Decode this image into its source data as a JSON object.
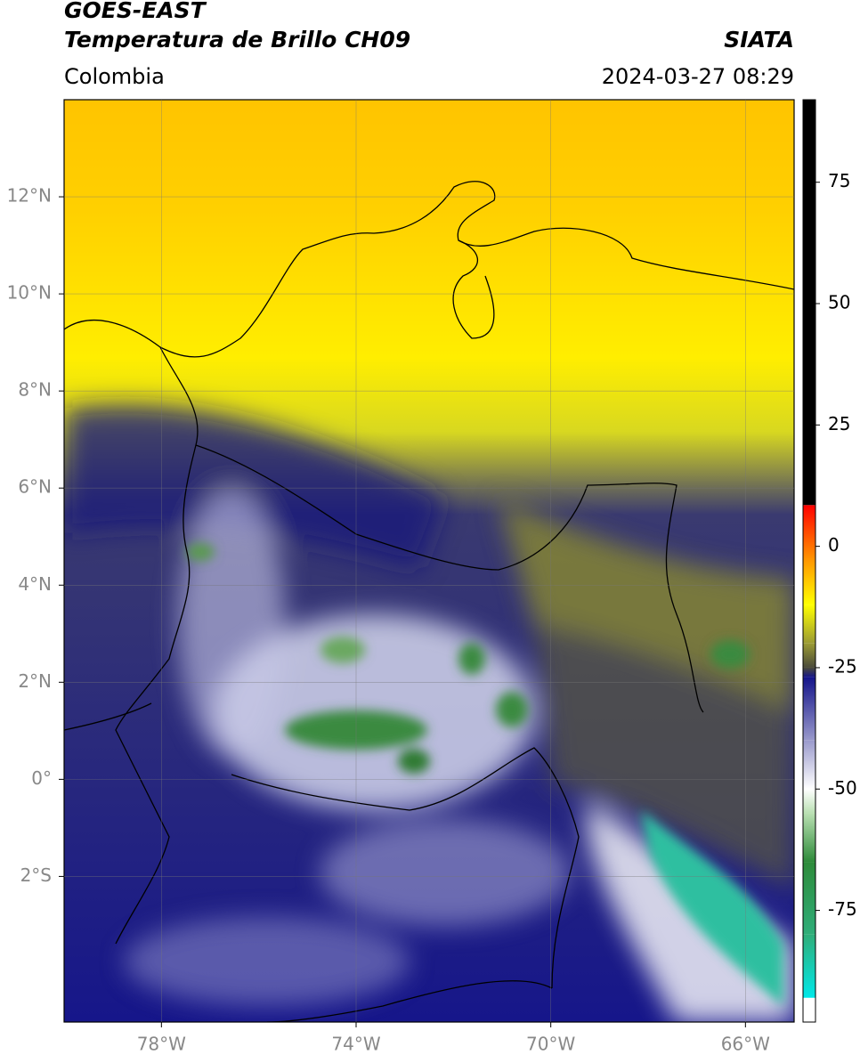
{
  "chart_data": {
    "type": "map",
    "title": "GOES-EAST",
    "subtitle": "Temperatura de Brillo CH09",
    "source": "SIATA",
    "region": "Colombia",
    "datetime": "2024-03-27 08:29",
    "xlim": [
      -80,
      -65
    ],
    "ylim": [
      -5,
      14
    ],
    "xticks": [
      {
        "value": -78,
        "label": "78°W"
      },
      {
        "value": -74,
        "label": "74°W"
      },
      {
        "value": -70,
        "label": "70°W"
      },
      {
        "value": -66,
        "label": "66°W"
      }
    ],
    "yticks": [
      {
        "value": 12,
        "label": "12°N"
      },
      {
        "value": 10,
        "label": "10°N"
      },
      {
        "value": 8,
        "label": "8°N"
      },
      {
        "value": 6,
        "label": "6°N"
      },
      {
        "value": 4,
        "label": "4°N"
      },
      {
        "value": 2,
        "label": "2°N"
      },
      {
        "value": 0,
        "label": "0°"
      },
      {
        "value": -2,
        "label": "2°S"
      }
    ],
    "grid": true,
    "clim": [
      -98,
      92
    ],
    "cticks": [
      75,
      50,
      25,
      0,
      -25,
      -50,
      -75
    ],
    "colormap": [
      {
        "value": -98,
        "color": "#ffffff"
      },
      {
        "value": -93,
        "color": "#ffffff"
      },
      {
        "value": -93,
        "color": "#00e8e8"
      },
      {
        "value": -80,
        "color": "#2fae7a"
      },
      {
        "value": -65,
        "color": "#2e8b3a"
      },
      {
        "value": -55,
        "color": "#b9e0b2"
      },
      {
        "value": -50,
        "color": "#ffffff"
      },
      {
        "value": -40,
        "color": "#9a9acc"
      },
      {
        "value": -27,
        "color": "#14148a"
      },
      {
        "value": -25,
        "color": "#4a4a3a"
      },
      {
        "value": -20,
        "color": "#9a9a33"
      },
      {
        "value": -12,
        "color": "#ffff00"
      },
      {
        "value": -3,
        "color": "#ff9900"
      },
      {
        "value": 8.5,
        "color": "#ff0000"
      },
      {
        "value": 8.5,
        "color": "#000000"
      },
      {
        "value": 92,
        "color": "#000000"
      }
    ]
  }
}
